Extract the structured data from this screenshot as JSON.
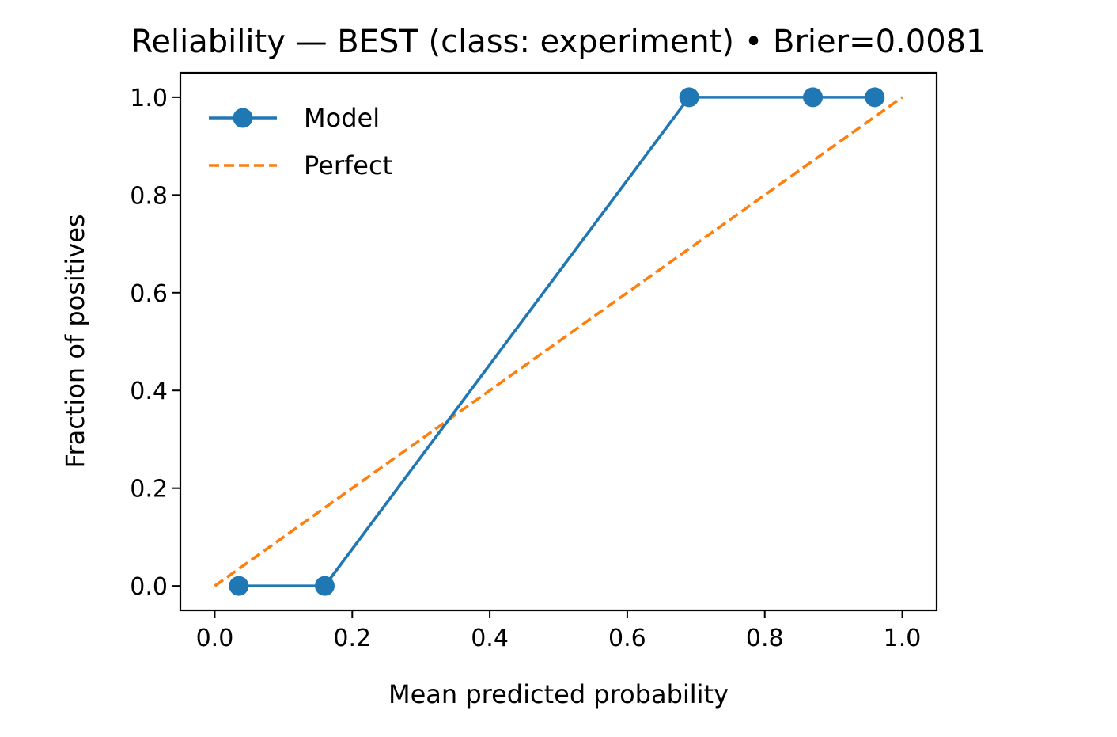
{
  "chart_data": {
    "type": "line",
    "title": "Reliability — BEST (class: experiment) • Brier=0.0081",
    "xlabel": "Mean predicted probability",
    "ylabel": "Fraction of positives",
    "xlim": [
      -0.05,
      1.05
    ],
    "ylim": [
      -0.05,
      1.05
    ],
    "xticks": [
      0.0,
      0.2,
      0.4,
      0.6,
      0.8,
      1.0
    ],
    "yticks": [
      0.0,
      0.2,
      0.4,
      0.6,
      0.8,
      1.0
    ],
    "xtick_labels": [
      "0.0",
      "0.2",
      "0.4",
      "0.6",
      "0.8",
      "1.0"
    ],
    "ytick_labels": [
      "0.0",
      "0.2",
      "0.4",
      "0.6",
      "0.8",
      "1.0"
    ],
    "grid": false,
    "legend_position": "top-left",
    "series": [
      {
        "name": "Model",
        "style": "solid-with-markers",
        "color": "#1f77b4",
        "x": [
          0.035,
          0.16,
          0.69,
          0.87,
          0.96
        ],
        "y": [
          0.0,
          0.0,
          1.0,
          1.0,
          1.0
        ]
      },
      {
        "name": "Perfect",
        "style": "dashed",
        "color": "#ff7f0e",
        "x": [
          0.0,
          1.0
        ],
        "y": [
          0.0,
          1.0
        ]
      }
    ]
  }
}
